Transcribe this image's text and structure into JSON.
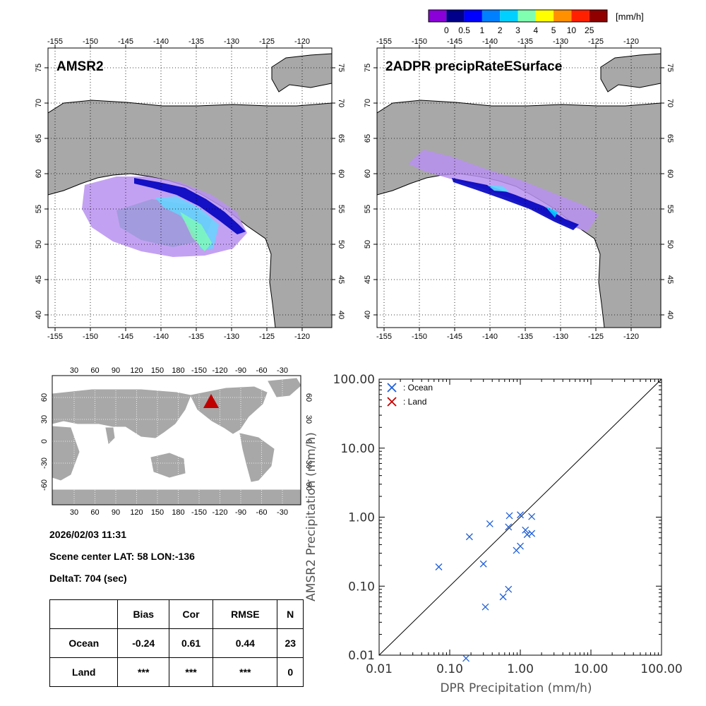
{
  "colorbar": {
    "colors": [
      "#8a00d8",
      "#00008a",
      "#0000ff",
      "#0080ff",
      "#00d0ff",
      "#80ffb0",
      "#ffff00",
      "#ff9000",
      "#ff2000",
      "#900000"
    ],
    "tick_labels": [
      "0",
      "0.5",
      "1",
      "2",
      "3",
      "4",
      "5",
      "10",
      "25"
    ],
    "unit": "[mm/h]"
  },
  "map_lon_ticks": [
    "-155",
    "-150",
    "-145",
    "-140",
    "-135",
    "-130",
    "-125",
    "-120"
  ],
  "map_lat_ticks": [
    "75",
    "70",
    "65",
    "60",
    "55",
    "50",
    "45",
    "40"
  ],
  "panels": {
    "amsr2": {
      "title": "AMSR2"
    },
    "dpr": {
      "title": "2ADPR precipRateESurface"
    }
  },
  "globe": {
    "lon_ticks": [
      "30",
      "60",
      "90",
      "120",
      "150",
      "180",
      "-150",
      "-120",
      "-90",
      "-60",
      "-30"
    ],
    "lat_ticks": [
      "60",
      "30",
      "0",
      "-30",
      "-60"
    ],
    "marker_color": "#c00000"
  },
  "info": {
    "datetime": "2026/02/03 11:31",
    "scene_center": "Scene center LAT: 58   LON:-136",
    "deltat": "DeltaT:  704 (sec)"
  },
  "stats": {
    "headers": [
      "",
      "Bias",
      "Cor",
      "RMSE",
      "N"
    ],
    "ocean": {
      "label": "Ocean",
      "bias": "-0.24",
      "cor": "0.61",
      "rmse": "0.44",
      "n": "23"
    },
    "land": {
      "label": "Land",
      "bias": "***",
      "cor": "***",
      "rmse": "***",
      "n": "0"
    }
  },
  "chart_data": {
    "type": "scatter",
    "xscale": "log",
    "yscale": "log",
    "xlabel": "DPR Precipitation (mm/h)",
    "ylabel": "AMSR2 Precipitation (mm/h)",
    "xlim": [
      0.01,
      100
    ],
    "ylim": [
      0.01,
      100
    ],
    "x_tick_labels": [
      "0.01",
      "0.10",
      "1.00",
      "10.00",
      "100.00"
    ],
    "y_tick_labels": [
      "0.01",
      "0.10",
      "1.00",
      "10.00",
      "100.00"
    ],
    "legend": [
      {
        "name": ": Ocean",
        "color": "#1f5fd8"
      },
      {
        "name": ": Land",
        "color": "#c00000"
      }
    ],
    "series": [
      {
        "name": "Ocean",
        "color": "#1f5fd8",
        "points": [
          [
            0.07,
            0.19
          ],
          [
            0.19,
            0.52
          ],
          [
            0.3,
            0.21
          ],
          [
            0.32,
            0.05
          ],
          [
            0.37,
            0.8
          ],
          [
            0.57,
            0.07
          ],
          [
            0.68,
            0.09
          ],
          [
            0.68,
            0.72
          ],
          [
            0.7,
            1.05
          ],
          [
            0.88,
            0.33
          ],
          [
            1.0,
            1.08
          ],
          [
            1.0,
            0.38
          ],
          [
            1.18,
            0.65
          ],
          [
            1.25,
            0.56
          ],
          [
            1.45,
            0.58
          ],
          [
            1.45,
            1.02
          ],
          [
            0.17,
            0.009
          ]
        ]
      },
      {
        "name": "Land",
        "color": "#c00000",
        "points": []
      }
    ]
  }
}
